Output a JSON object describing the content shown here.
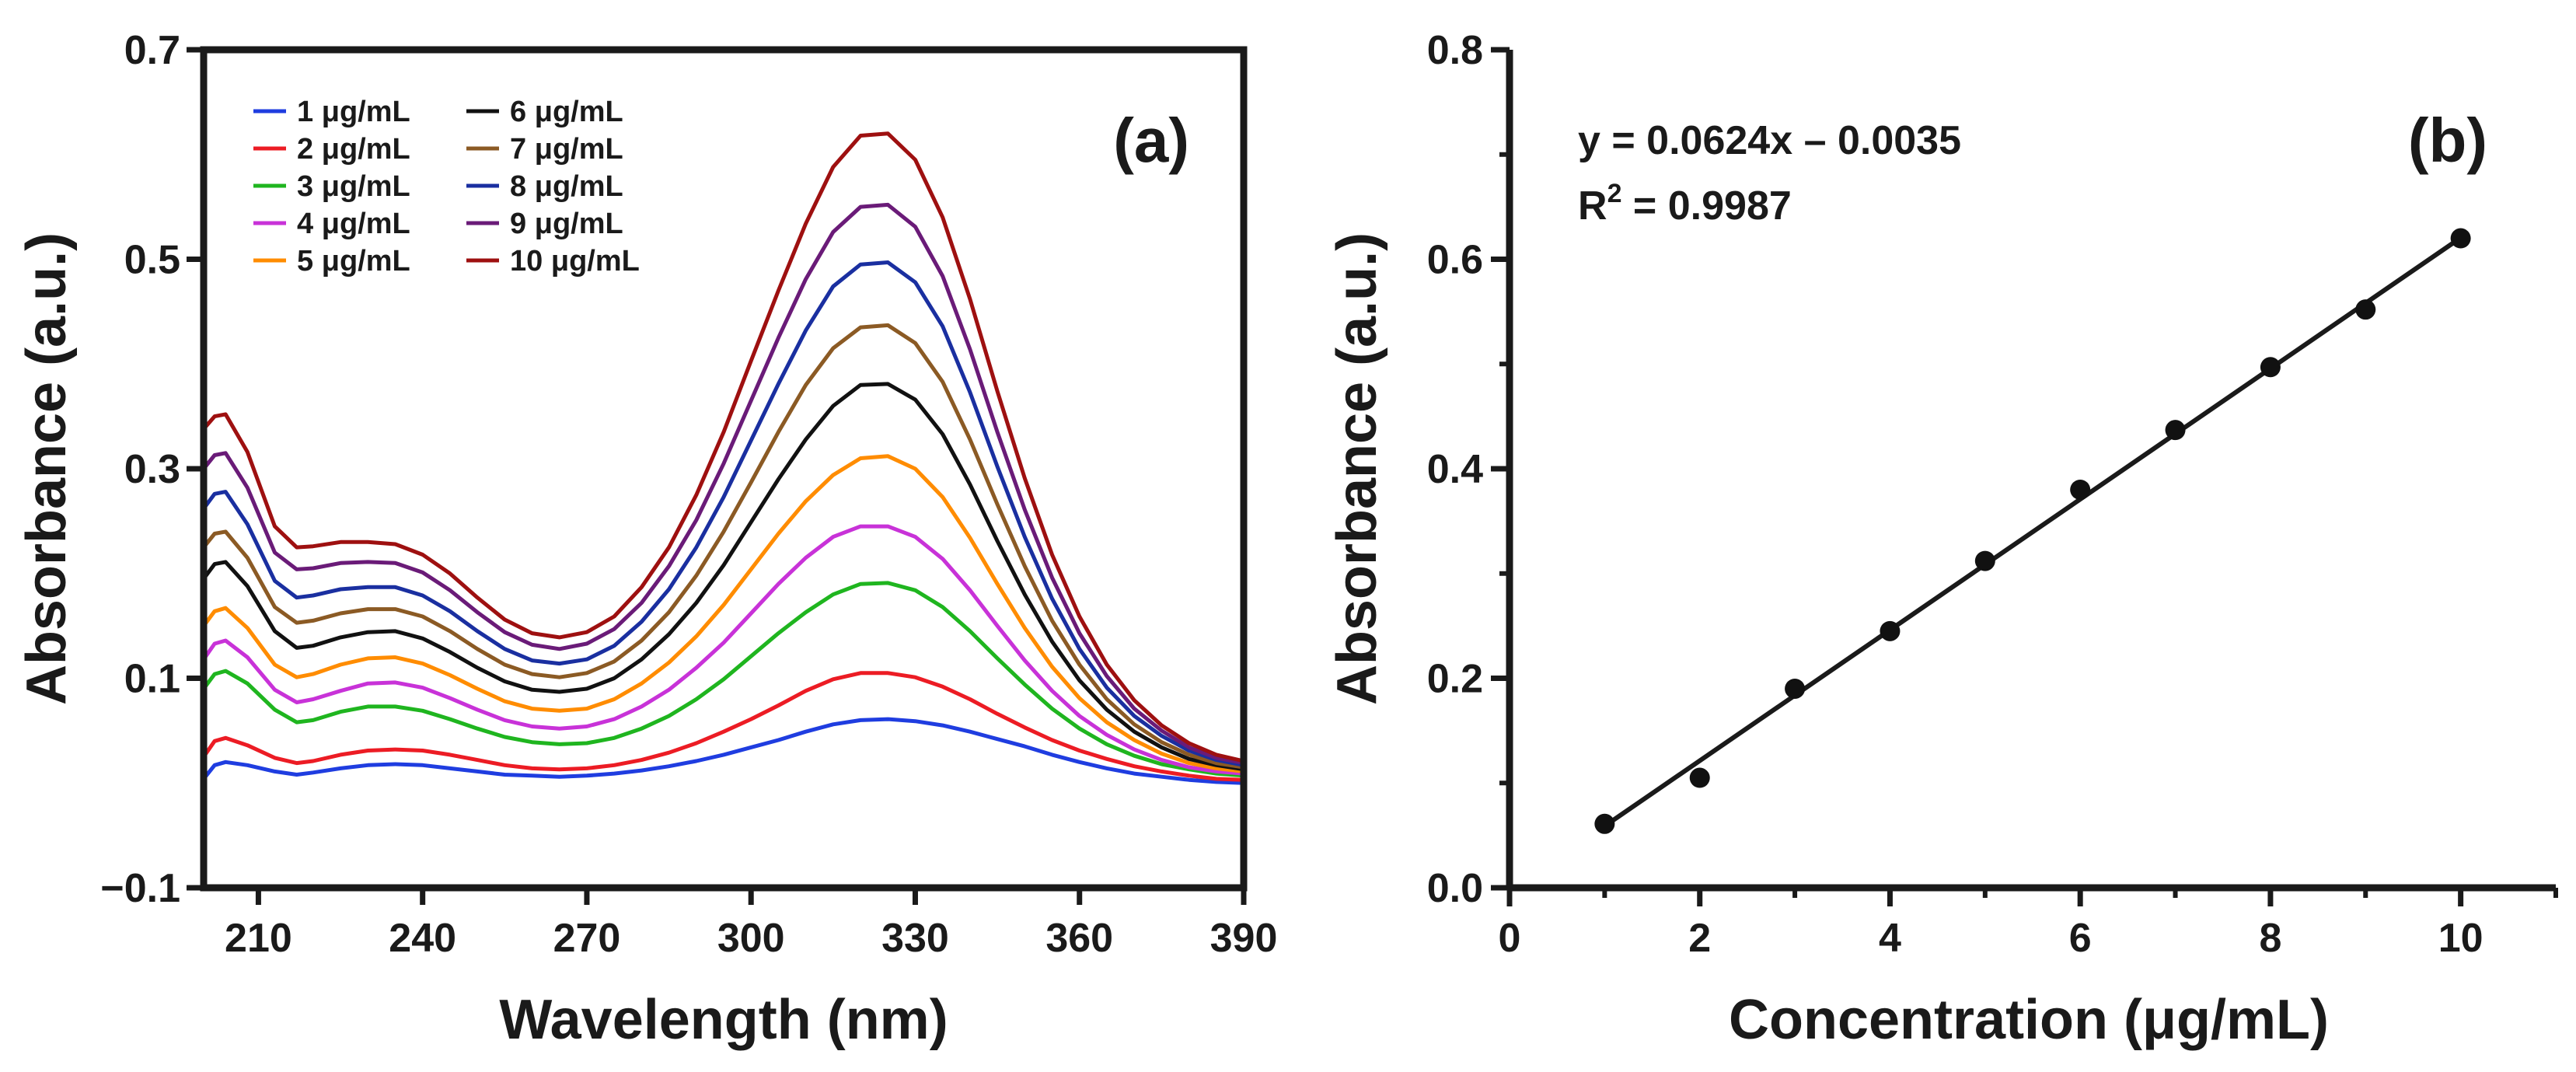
{
  "chart_data": [
    {
      "panel": "(a)",
      "type": "line",
      "xlabel": "Wavelength (nm)",
      "ylabel": "Absorbance (a.u.)",
      "xlim": [
        200,
        390
      ],
      "ylim": [
        -0.1,
        0.7
      ],
      "xticks": [
        210,
        240,
        270,
        300,
        330,
        360,
        390
      ],
      "xtick_labels": [
        "210",
        "240",
        "270",
        "300",
        "330",
        "360",
        "390"
      ],
      "yticks": [
        -0.1,
        0.1,
        0.3,
        0.5,
        0.7
      ],
      "ytick_labels": [
        "−0.1",
        "0.1",
        "0.3",
        "0.5",
        "0.7"
      ],
      "legend_placement": "top-left",
      "x": [
        200,
        202,
        204,
        208,
        213,
        217,
        220,
        225,
        230,
        235,
        240,
        245,
        250,
        255,
        260,
        265,
        270,
        275,
        280,
        285,
        290,
        295,
        300,
        305,
        310,
        315,
        320,
        325,
        330,
        335,
        340,
        345,
        350,
        355,
        360,
        365,
        370,
        375,
        380,
        385,
        390
      ],
      "series": [
        {
          "name": "1 μg/mL",
          "color": "#1f3de0",
          "values": [
            0.004,
            0.017,
            0.02,
            0.017,
            0.011,
            0.008,
            0.01,
            0.014,
            0.017,
            0.018,
            0.017,
            0.014,
            0.011,
            0.008,
            0.007,
            0.006,
            0.007,
            0.009,
            0.012,
            0.016,
            0.021,
            0.027,
            0.034,
            0.041,
            0.049,
            0.056,
            0.06,
            0.061,
            0.059,
            0.055,
            0.049,
            0.042,
            0.035,
            0.027,
            0.02,
            0.014,
            0.009,
            0.006,
            0.003,
            0.001,
            0.0
          ]
        },
        {
          "name": "2 μg/mL",
          "color": "#ec1c24",
          "values": [
            0.025,
            0.04,
            0.043,
            0.036,
            0.024,
            0.019,
            0.021,
            0.027,
            0.031,
            0.032,
            0.031,
            0.027,
            0.022,
            0.017,
            0.014,
            0.013,
            0.014,
            0.017,
            0.022,
            0.029,
            0.038,
            0.049,
            0.061,
            0.074,
            0.088,
            0.099,
            0.105,
            0.105,
            0.101,
            0.092,
            0.08,
            0.066,
            0.053,
            0.041,
            0.031,
            0.023,
            0.016,
            0.011,
            0.007,
            0.004,
            0.003
          ]
        },
        {
          "name": "3 μg/mL",
          "color": "#1fb51f",
          "values": [
            0.09,
            0.104,
            0.107,
            0.095,
            0.07,
            0.058,
            0.06,
            0.068,
            0.073,
            0.073,
            0.069,
            0.061,
            0.052,
            0.044,
            0.039,
            0.037,
            0.038,
            0.043,
            0.052,
            0.064,
            0.08,
            0.099,
            0.121,
            0.143,
            0.163,
            0.18,
            0.19,
            0.191,
            0.184,
            0.168,
            0.145,
            0.119,
            0.094,
            0.071,
            0.052,
            0.037,
            0.026,
            0.018,
            0.013,
            0.009,
            0.007
          ]
        },
        {
          "name": "4 μg/mL",
          "color": "#c832d8",
          "values": [
            0.118,
            0.133,
            0.136,
            0.12,
            0.089,
            0.077,
            0.08,
            0.088,
            0.095,
            0.096,
            0.091,
            0.081,
            0.07,
            0.06,
            0.054,
            0.052,
            0.054,
            0.061,
            0.073,
            0.089,
            0.11,
            0.134,
            0.162,
            0.19,
            0.215,
            0.235,
            0.245,
            0.245,
            0.235,
            0.214,
            0.184,
            0.15,
            0.117,
            0.088,
            0.064,
            0.046,
            0.032,
            0.022,
            0.015,
            0.011,
            0.009
          ]
        },
        {
          "name": "5 μg/mL",
          "color": "#ff8c00",
          "values": [
            0.15,
            0.164,
            0.167,
            0.148,
            0.113,
            0.101,
            0.104,
            0.113,
            0.119,
            0.12,
            0.114,
            0.103,
            0.09,
            0.078,
            0.071,
            0.069,
            0.071,
            0.08,
            0.095,
            0.115,
            0.14,
            0.17,
            0.204,
            0.238,
            0.269,
            0.294,
            0.31,
            0.312,
            0.3,
            0.273,
            0.234,
            0.19,
            0.148,
            0.111,
            0.081,
            0.058,
            0.041,
            0.028,
            0.019,
            0.014,
            0.011
          ]
        },
        {
          "name": "6 μg/mL",
          "color": "#111111",
          "values": [
            0.195,
            0.209,
            0.211,
            0.188,
            0.145,
            0.129,
            0.131,
            0.139,
            0.144,
            0.145,
            0.138,
            0.125,
            0.11,
            0.097,
            0.089,
            0.087,
            0.09,
            0.1,
            0.118,
            0.142,
            0.172,
            0.208,
            0.249,
            0.29,
            0.328,
            0.36,
            0.38,
            0.381,
            0.366,
            0.333,
            0.285,
            0.231,
            0.18,
            0.135,
            0.098,
            0.07,
            0.049,
            0.034,
            0.023,
            0.017,
            0.013
          ]
        },
        {
          "name": "7 μg/mL",
          "color": "#8b5a24",
          "values": [
            0.225,
            0.238,
            0.24,
            0.215,
            0.168,
            0.153,
            0.155,
            0.162,
            0.166,
            0.166,
            0.159,
            0.145,
            0.128,
            0.113,
            0.104,
            0.101,
            0.105,
            0.116,
            0.136,
            0.163,
            0.198,
            0.24,
            0.287,
            0.335,
            0.38,
            0.415,
            0.435,
            0.437,
            0.42,
            0.383,
            0.328,
            0.266,
            0.207,
            0.155,
            0.113,
            0.08,
            0.056,
            0.039,
            0.027,
            0.019,
            0.015
          ]
        },
        {
          "name": "8 μg/mL",
          "color": "#1a2fa0",
          "values": [
            0.262,
            0.276,
            0.278,
            0.247,
            0.193,
            0.177,
            0.179,
            0.185,
            0.187,
            0.187,
            0.179,
            0.164,
            0.145,
            0.128,
            0.117,
            0.114,
            0.118,
            0.131,
            0.154,
            0.185,
            0.225,
            0.273,
            0.327,
            0.381,
            0.432,
            0.474,
            0.495,
            0.497,
            0.478,
            0.436,
            0.373,
            0.302,
            0.235,
            0.176,
            0.128,
            0.091,
            0.064,
            0.045,
            0.031,
            0.022,
            0.017
          ]
        },
        {
          "name": "9 μg/mL",
          "color": "#6a1b78",
          "values": [
            0.3,
            0.313,
            0.315,
            0.282,
            0.22,
            0.204,
            0.205,
            0.21,
            0.211,
            0.21,
            0.201,
            0.184,
            0.163,
            0.144,
            0.132,
            0.128,
            0.133,
            0.147,
            0.172,
            0.207,
            0.251,
            0.305,
            0.365,
            0.425,
            0.481,
            0.526,
            0.55,
            0.552,
            0.531,
            0.484,
            0.414,
            0.335,
            0.261,
            0.196,
            0.143,
            0.102,
            0.071,
            0.05,
            0.034,
            0.024,
            0.019
          ]
        },
        {
          "name": "10 μg/mL",
          "color": "#9e1010",
          "values": [
            0.338,
            0.35,
            0.352,
            0.316,
            0.245,
            0.225,
            0.226,
            0.23,
            0.23,
            0.228,
            0.218,
            0.2,
            0.177,
            0.156,
            0.143,
            0.139,
            0.144,
            0.159,
            0.187,
            0.225,
            0.275,
            0.335,
            0.403,
            0.47,
            0.534,
            0.588,
            0.618,
            0.62,
            0.595,
            0.54,
            0.462,
            0.374,
            0.291,
            0.218,
            0.159,
            0.113,
            0.079,
            0.055,
            0.038,
            0.027,
            0.021
          ]
        }
      ]
    },
    {
      "panel": "(b)",
      "type": "scatter",
      "xlabel": "Concentration (μg/mL)",
      "ylabel": "Absorbance (a.u.)",
      "xlim": [
        0,
        11
      ],
      "ylim": [
        0.0,
        0.8
      ],
      "xticks": [
        0,
        2,
        4,
        6,
        8,
        10
      ],
      "xtick_labels": [
        "0",
        "2",
        "4",
        "6",
        "8",
        "10"
      ],
      "yticks": [
        0.0,
        0.2,
        0.4,
        0.6,
        0.8
      ],
      "ytick_labels": [
        "0.0",
        "0.2",
        "0.4",
        "0.6",
        "0.8"
      ],
      "points": {
        "x": [
          1,
          2,
          3,
          4,
          5,
          6,
          7,
          8,
          9,
          10
        ],
        "y": [
          0.061,
          0.105,
          0.19,
          0.245,
          0.312,
          0.38,
          0.437,
          0.497,
          0.552,
          0.62
        ]
      },
      "fit": {
        "slope": 0.0624,
        "intercept": -0.0035,
        "x_range": [
          1,
          10
        ]
      },
      "equation": "y = 0.0624x – 0.0035",
      "r2_prefix": "R",
      "r2_superscript": "2",
      "r2_value": " = 0.9987"
    }
  ]
}
